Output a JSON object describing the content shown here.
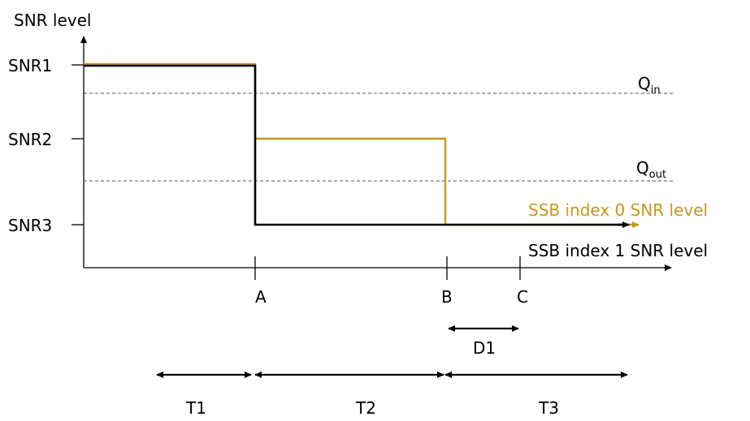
{
  "y_axis": {
    "title": "SNR level",
    "levels": [
      {
        "label": "SNR1"
      },
      {
        "label": "SNR2"
      },
      {
        "label": "SNR3"
      }
    ]
  },
  "thresholds": {
    "q_in": {
      "main": "Q",
      "sub": "in"
    },
    "q_out": {
      "main": "Q",
      "sub": "out"
    }
  },
  "x_axis": {
    "points": [
      {
        "label": "A"
      },
      {
        "label": "B"
      },
      {
        "label": "C"
      }
    ]
  },
  "legend": {
    "ssb0": "SSB index 0 SNR level",
    "ssb1": "SSB index 1 SNR level"
  },
  "intervals": {
    "d1": "D1",
    "t1": "T1",
    "t2": "T2",
    "t3": "T3"
  },
  "colors": {
    "ssb0": "#c8961e",
    "ssb1": "#000000"
  }
}
